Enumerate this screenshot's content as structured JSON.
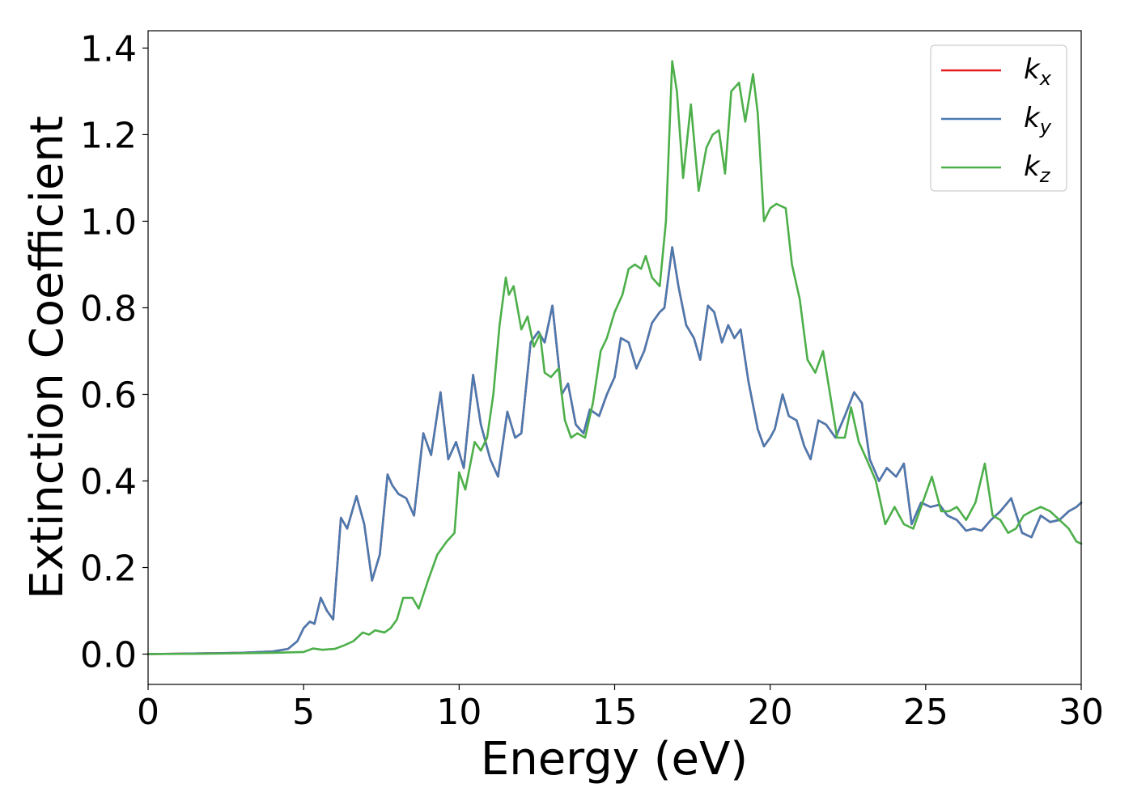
{
  "chart_data": {
    "type": "line",
    "xlabel": "Energy (eV)",
    "ylabel": "Extinction Coefficient",
    "xlim": [
      0,
      30
    ],
    "ylim": [
      -0.07,
      1.44
    ],
    "xticks": [
      "0",
      "5",
      "10",
      "15",
      "20",
      "25",
      "30"
    ],
    "yticks": [
      "0.0",
      "0.2",
      "0.4",
      "0.6",
      "0.8",
      "1.0",
      "1.2",
      "1.4"
    ],
    "grid": false,
    "legend_position": "top-right",
    "series": [
      {
        "name": "k_x",
        "legend_base": "k",
        "legend_sub": "x",
        "color": "#e41a1c",
        "hidden_under": "k_y",
        "x": [
          0,
          1,
          2,
          3,
          4,
          4.5,
          4.8,
          5.0,
          5.2,
          5.35,
          5.55,
          5.75,
          5.95,
          6.2,
          6.4,
          6.7,
          6.95,
          7.2,
          7.45,
          7.7,
          7.85,
          8.05,
          8.3,
          8.55,
          8.85,
          9.1,
          9.4,
          9.65,
          9.9,
          10.15,
          10.45,
          10.7,
          11.0,
          11.25,
          11.55,
          11.8,
          12.0,
          12.3,
          12.55,
          12.75,
          13.0,
          13.3,
          13.5,
          13.75,
          14.0,
          14.2,
          14.5,
          14.75,
          15.0,
          15.2,
          15.45,
          15.7,
          15.95,
          16.2,
          16.45,
          16.6,
          16.85,
          17.05,
          17.3,
          17.55,
          17.75,
          18.0,
          18.2,
          18.45,
          18.65,
          18.85,
          19.05,
          19.3,
          19.6,
          19.8,
          20.0,
          20.15,
          20.4,
          20.6,
          20.85,
          21.1,
          21.3,
          21.55,
          21.8,
          22.1,
          22.4,
          22.7,
          22.95,
          23.2,
          23.5,
          23.75,
          24.05,
          24.3,
          24.55,
          24.85,
          25.15,
          25.45,
          25.7,
          26.0,
          26.3,
          26.55,
          26.8,
          27.1,
          27.4,
          27.75,
          28.1,
          28.4,
          28.7,
          29.0,
          29.3,
          29.6,
          29.85,
          30.0
        ],
        "y": [
          0.0,
          0.001,
          0.002,
          0.003,
          0.006,
          0.012,
          0.03,
          0.06,
          0.075,
          0.07,
          0.13,
          0.1,
          0.08,
          0.315,
          0.29,
          0.365,
          0.3,
          0.17,
          0.23,
          0.415,
          0.39,
          0.37,
          0.36,
          0.32,
          0.51,
          0.46,
          0.605,
          0.45,
          0.49,
          0.43,
          0.645,
          0.53,
          0.45,
          0.41,
          0.56,
          0.5,
          0.51,
          0.72,
          0.745,
          0.72,
          0.805,
          0.6,
          0.625,
          0.53,
          0.51,
          0.565,
          0.55,
          0.6,
          0.64,
          0.73,
          0.72,
          0.66,
          0.7,
          0.765,
          0.79,
          0.8,
          0.94,
          0.85,
          0.76,
          0.73,
          0.68,
          0.805,
          0.79,
          0.72,
          0.76,
          0.73,
          0.75,
          0.63,
          0.52,
          0.48,
          0.5,
          0.52,
          0.6,
          0.55,
          0.54,
          0.48,
          0.45,
          0.54,
          0.53,
          0.5,
          0.55,
          0.605,
          0.58,
          0.45,
          0.4,
          0.43,
          0.41,
          0.44,
          0.3,
          0.35,
          0.34,
          0.345,
          0.32,
          0.31,
          0.285,
          0.29,
          0.285,
          0.31,
          0.33,
          0.36,
          0.28,
          0.27,
          0.32,
          0.305,
          0.31,
          0.33,
          0.34,
          0.35
        ]
      },
      {
        "name": "k_y",
        "legend_base": "k",
        "legend_sub": "y",
        "color": "#4a7ab0",
        "x": [
          0,
          1,
          2,
          3,
          4,
          4.5,
          4.8,
          5.0,
          5.2,
          5.35,
          5.55,
          5.75,
          5.95,
          6.2,
          6.4,
          6.7,
          6.95,
          7.2,
          7.45,
          7.7,
          7.85,
          8.05,
          8.3,
          8.55,
          8.85,
          9.1,
          9.4,
          9.65,
          9.9,
          10.15,
          10.45,
          10.7,
          11.0,
          11.25,
          11.55,
          11.8,
          12.0,
          12.3,
          12.55,
          12.75,
          13.0,
          13.3,
          13.5,
          13.75,
          14.0,
          14.2,
          14.5,
          14.75,
          15.0,
          15.2,
          15.45,
          15.7,
          15.95,
          16.2,
          16.45,
          16.6,
          16.85,
          17.05,
          17.3,
          17.55,
          17.75,
          18.0,
          18.2,
          18.45,
          18.65,
          18.85,
          19.05,
          19.3,
          19.6,
          19.8,
          20.0,
          20.15,
          20.4,
          20.6,
          20.85,
          21.1,
          21.3,
          21.55,
          21.8,
          22.1,
          22.4,
          22.7,
          22.95,
          23.2,
          23.5,
          23.75,
          24.05,
          24.3,
          24.55,
          24.85,
          25.15,
          25.45,
          25.7,
          26.0,
          26.3,
          26.55,
          26.8,
          27.1,
          27.4,
          27.75,
          28.1,
          28.4,
          28.7,
          29.0,
          29.3,
          29.6,
          29.85,
          30.0
        ],
        "y": [
          0.0,
          0.001,
          0.002,
          0.003,
          0.006,
          0.012,
          0.03,
          0.06,
          0.075,
          0.07,
          0.13,
          0.1,
          0.08,
          0.315,
          0.29,
          0.365,
          0.3,
          0.17,
          0.23,
          0.415,
          0.39,
          0.37,
          0.36,
          0.32,
          0.51,
          0.46,
          0.605,
          0.45,
          0.49,
          0.43,
          0.645,
          0.53,
          0.45,
          0.41,
          0.56,
          0.5,
          0.51,
          0.72,
          0.745,
          0.72,
          0.805,
          0.6,
          0.625,
          0.53,
          0.51,
          0.565,
          0.55,
          0.6,
          0.64,
          0.73,
          0.72,
          0.66,
          0.7,
          0.765,
          0.79,
          0.8,
          0.94,
          0.85,
          0.76,
          0.73,
          0.68,
          0.805,
          0.79,
          0.72,
          0.76,
          0.73,
          0.75,
          0.63,
          0.52,
          0.48,
          0.5,
          0.52,
          0.6,
          0.55,
          0.54,
          0.48,
          0.45,
          0.54,
          0.53,
          0.5,
          0.55,
          0.605,
          0.58,
          0.45,
          0.4,
          0.43,
          0.41,
          0.44,
          0.3,
          0.35,
          0.34,
          0.345,
          0.32,
          0.31,
          0.285,
          0.29,
          0.285,
          0.31,
          0.33,
          0.36,
          0.28,
          0.27,
          0.32,
          0.305,
          0.31,
          0.33,
          0.34,
          0.35
        ]
      },
      {
        "name": "k_z",
        "legend_base": "k",
        "legend_sub": "z",
        "color": "#4daf4a",
        "x": [
          0,
          2,
          4,
          5.0,
          5.3,
          5.6,
          6.0,
          6.3,
          6.6,
          6.9,
          7.1,
          7.3,
          7.6,
          7.8,
          8.0,
          8.2,
          8.5,
          8.7,
          9.0,
          9.3,
          9.6,
          9.85,
          10.0,
          10.2,
          10.5,
          10.7,
          10.9,
          11.1,
          11.3,
          11.5,
          11.6,
          11.75,
          12.0,
          12.2,
          12.4,
          12.6,
          12.75,
          12.95,
          13.2,
          13.4,
          13.6,
          13.8,
          14.05,
          14.3,
          14.55,
          14.75,
          15.0,
          15.25,
          15.45,
          15.65,
          15.85,
          16.0,
          16.2,
          16.45,
          16.65,
          16.85,
          17.0,
          17.2,
          17.45,
          17.7,
          17.95,
          18.15,
          18.35,
          18.55,
          18.75,
          19.0,
          19.2,
          19.45,
          19.6,
          19.8,
          20.0,
          20.2,
          20.5,
          20.7,
          20.95,
          21.2,
          21.45,
          21.7,
          21.95,
          22.15,
          22.4,
          22.6,
          22.85,
          23.1,
          23.4,
          23.7,
          24.0,
          24.3,
          24.6,
          24.9,
          25.2,
          25.5,
          25.75,
          26.0,
          26.3,
          26.6,
          26.9,
          27.15,
          27.4,
          27.65,
          27.9,
          28.15,
          28.4,
          28.7,
          29.0,
          29.3,
          29.6,
          29.85,
          30.0
        ],
        "y": [
          0.0,
          0.001,
          0.003,
          0.005,
          0.013,
          0.01,
          0.012,
          0.02,
          0.03,
          0.05,
          0.045,
          0.055,
          0.05,
          0.06,
          0.08,
          0.13,
          0.13,
          0.105,
          0.17,
          0.23,
          0.26,
          0.28,
          0.42,
          0.38,
          0.49,
          0.47,
          0.5,
          0.6,
          0.76,
          0.87,
          0.83,
          0.85,
          0.75,
          0.78,
          0.71,
          0.74,
          0.65,
          0.64,
          0.66,
          0.54,
          0.5,
          0.51,
          0.5,
          0.58,
          0.7,
          0.73,
          0.79,
          0.83,
          0.89,
          0.9,
          0.89,
          0.92,
          0.87,
          0.85,
          1.0,
          1.37,
          1.3,
          1.1,
          1.27,
          1.07,
          1.17,
          1.2,
          1.21,
          1.11,
          1.3,
          1.32,
          1.23,
          1.34,
          1.25,
          1.0,
          1.03,
          1.04,
          1.03,
          0.9,
          0.82,
          0.68,
          0.65,
          0.7,
          0.59,
          0.5,
          0.5,
          0.57,
          0.49,
          0.45,
          0.4,
          0.3,
          0.34,
          0.3,
          0.29,
          0.35,
          0.41,
          0.33,
          0.33,
          0.34,
          0.31,
          0.35,
          0.44,
          0.32,
          0.31,
          0.28,
          0.29,
          0.32,
          0.33,
          0.34,
          0.33,
          0.31,
          0.29,
          0.26,
          0.255
        ]
      }
    ]
  }
}
